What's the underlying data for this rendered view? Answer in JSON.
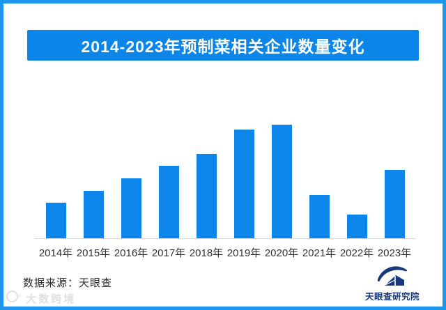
{
  "title": "2014-2023年预制菜相关企业数量变化",
  "chart_data": {
    "type": "bar",
    "title": "2014-2023年预制菜相关企业数量变化",
    "categories": [
      "2014年",
      "2015年",
      "2016年",
      "2017年",
      "2018年",
      "2019年",
      "2020年",
      "2021年",
      "2022年",
      "2023年"
    ],
    "values": [
      31,
      42,
      53,
      64,
      74,
      96,
      100,
      38,
      21,
      60
    ],
    "xlabel": "",
    "ylabel": "",
    "ylim": [
      0,
      100
    ],
    "grid": false,
    "legend": "none",
    "note": "no y-axis, gridlines or value labels are shown in the image; values are relative bar heights with the tallest bar (2020年) = 100"
  },
  "footer": {
    "source": "数据来源：天眼查",
    "logo_text": "天眼查研究院",
    "watermark": "大数跨境"
  },
  "colors": {
    "bar": "#0e86e9",
    "banner": "#0b85e8",
    "frame_border": "#1e96ec",
    "axis_line": "#d9d9d9",
    "label_text": "#333333",
    "logo_navy": "#17387c",
    "title_text": "#ffffff"
  }
}
